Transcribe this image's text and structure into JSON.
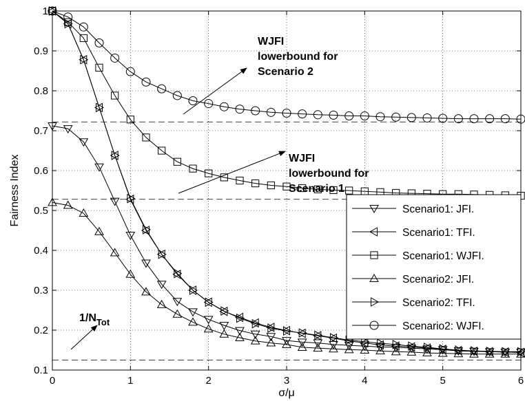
{
  "chart_data": {
    "type": "line",
    "xlabel": "σ/μ",
    "ylabel": "Fairness Index",
    "xlim": [
      0,
      6
    ],
    "ylim": [
      0.1,
      1.0
    ],
    "xticks": [
      0,
      1,
      2,
      3,
      4,
      5,
      6
    ],
    "yticks": [
      0.1,
      0.2,
      0.3,
      0.4,
      0.5,
      0.6,
      0.7,
      0.8,
      0.9,
      1
    ],
    "xtick_labels": [
      "0",
      "1",
      "2",
      "3",
      "4",
      "5",
      "6"
    ],
    "ytick_labels": [
      "0.1",
      "0.2",
      "0.3",
      "0.4",
      "0.5",
      "0.6",
      "0.7",
      "0.8",
      "0.9",
      "1"
    ],
    "grid": true,
    "legend_position": "center-right",
    "x": [
      0,
      0.2,
      0.4,
      0.6,
      0.8,
      1.0,
      1.2,
      1.4,
      1.6,
      1.8,
      2.0,
      2.2,
      2.4,
      2.6,
      2.8,
      3.0,
      3.2,
      3.4,
      3.6,
      3.8,
      4.0,
      4.2,
      4.4,
      4.6,
      4.8,
      5.0,
      5.2,
      5.4,
      5.6,
      5.8,
      6.0
    ],
    "series": [
      {
        "name": "Scenario1: JFI.",
        "marker": "triangle-down",
        "values": [
          0.712,
          0.705,
          0.672,
          0.609,
          0.523,
          0.438,
          0.368,
          0.315,
          0.272,
          0.246,
          0.227,
          0.212,
          0.199,
          0.19,
          0.184,
          0.174,
          0.17,
          0.168,
          0.164,
          0.162,
          0.16,
          0.158,
          0.157,
          0.155,
          0.153,
          0.151,
          0.148,
          0.147,
          0.146,
          0.145,
          0.145
        ]
      },
      {
        "name": "Scenario1: TFI.",
        "marker": "triangle-left",
        "values": [
          1.0,
          0.968,
          0.878,
          0.758,
          0.638,
          0.528,
          0.45,
          0.39,
          0.34,
          0.3,
          0.27,
          0.247,
          0.232,
          0.218,
          0.207,
          0.199,
          0.192,
          0.186,
          0.18,
          0.173,
          0.168,
          0.163,
          0.16,
          0.158,
          0.155,
          0.152,
          0.149,
          0.147,
          0.146,
          0.145,
          0.144
        ]
      },
      {
        "name": "Scenario1: WJFI.",
        "marker": "square",
        "values": [
          1.0,
          0.972,
          0.932,
          0.858,
          0.788,
          0.728,
          0.683,
          0.65,
          0.622,
          0.605,
          0.593,
          0.583,
          0.575,
          0.568,
          0.563,
          0.56,
          0.556,
          0.553,
          0.551,
          0.55,
          0.548,
          0.546,
          0.544,
          0.543,
          0.542,
          0.541,
          0.541,
          0.54,
          0.539,
          0.538,
          0.537
        ]
      },
      {
        "name": "Scenario2: JFI.",
        "marker": "triangle-up",
        "values": [
          0.52,
          0.513,
          0.493,
          0.447,
          0.394,
          0.34,
          0.296,
          0.264,
          0.24,
          0.22,
          0.203,
          0.19,
          0.181,
          0.173,
          0.168,
          0.164,
          0.157,
          0.155,
          0.153,
          0.151,
          0.15,
          0.148,
          0.146,
          0.145,
          0.143,
          0.142,
          0.141,
          0.14,
          0.14,
          0.14,
          0.14
        ]
      },
      {
        "name": "Scenario2: TFI.",
        "marker": "triangle-right",
        "values": [
          1.0,
          0.968,
          0.878,
          0.758,
          0.638,
          0.53,
          0.452,
          0.39,
          0.342,
          0.3,
          0.27,
          0.248,
          0.23,
          0.216,
          0.205,
          0.198,
          0.193,
          0.187,
          0.181,
          0.175,
          0.171,
          0.167,
          0.164,
          0.16,
          0.157,
          0.153,
          0.15,
          0.148,
          0.147,
          0.146,
          0.146
        ]
      },
      {
        "name": "Scenario2: WJFI.",
        "marker": "circle",
        "values": [
          1.0,
          0.985,
          0.96,
          0.92,
          0.882,
          0.848,
          0.822,
          0.805,
          0.788,
          0.775,
          0.768,
          0.76,
          0.754,
          0.75,
          0.746,
          0.744,
          0.742,
          0.74,
          0.739,
          0.737,
          0.737,
          0.735,
          0.734,
          0.733,
          0.732,
          0.731,
          0.73,
          0.73,
          0.73,
          0.73,
          0.729
        ]
      }
    ],
    "reference_lines": [
      {
        "y": 0.722
      },
      {
        "y": 0.528
      },
      {
        "y": 0.125
      }
    ],
    "annotations": [
      {
        "lines": [
          "WJFI",
          "lowerbound for",
          "Scenario 2"
        ]
      },
      {
        "lines": [
          "WJFI",
          "lowerbound for",
          "Scenario 1"
        ]
      },
      {
        "base": "1/N",
        "sub": "Tot"
      }
    ]
  }
}
